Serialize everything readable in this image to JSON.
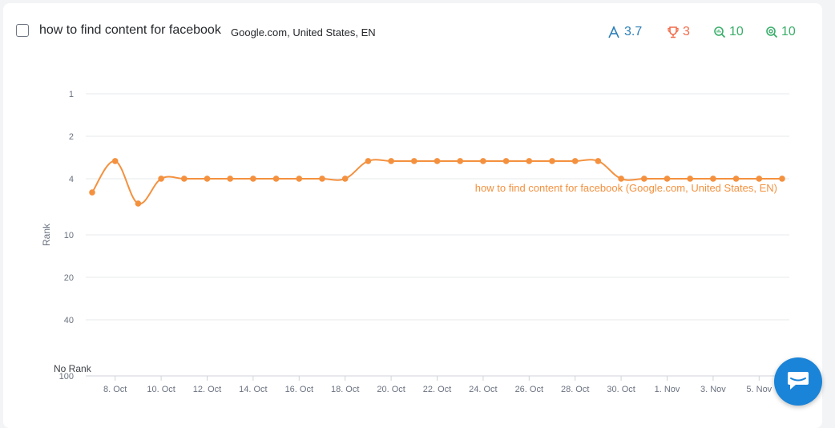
{
  "keyword": {
    "title": "how to find content for facebook",
    "engine": "Google.com, United States, EN"
  },
  "metrics": [
    {
      "icon": "average-position-icon",
      "value": "3.7",
      "color": "#2c7fb8"
    },
    {
      "icon": "trophy-icon",
      "value": "3",
      "color": "#f26b4a"
    },
    {
      "icon": "search-volume-icon",
      "value": "10",
      "color": "#3aae6a"
    },
    {
      "icon": "search-target-icon",
      "value": "10",
      "color": "#3aae6a"
    }
  ],
  "chart_data": {
    "type": "line",
    "ylabel": "Rank",
    "y_axis_scale": "log",
    "y_axis_inverted": true,
    "ylim": [
      1,
      100
    ],
    "y_ticks": [
      "1",
      "2",
      "4",
      "10",
      "20",
      "40",
      "100"
    ],
    "y_bottom_label": "No Rank",
    "x_ticks": [
      "8. Oct",
      "10. Oct",
      "12. Oct",
      "14. Oct",
      "16. Oct",
      "18. Oct",
      "20. Oct",
      "22. Oct",
      "24. Oct",
      "26. Oct",
      "28. Oct",
      "30. Oct",
      "1. Nov",
      "3. Nov",
      "5. Nov"
    ],
    "grid": true,
    "series": [
      {
        "name": "how to find content for facebook (Google.com, United States, EN)",
        "color": "#f4913f",
        "x": [
          "7. Oct",
          "8. Oct",
          "9. Oct",
          "10. Oct",
          "11. Oct",
          "12. Oct",
          "13. Oct",
          "14. Oct",
          "15. Oct",
          "16. Oct",
          "17. Oct",
          "18. Oct",
          "19. Oct",
          "20. Oct",
          "21. Oct",
          "22. Oct",
          "23. Oct",
          "24. Oct",
          "25. Oct",
          "26. Oct",
          "27. Oct",
          "28. Oct",
          "29. Oct",
          "30. Oct",
          "31. Oct",
          "1. Nov",
          "2. Nov",
          "3. Nov",
          "4. Nov",
          "5. Nov",
          "6. Nov"
        ],
        "values": [
          5,
          3,
          6,
          4,
          4,
          4,
          4,
          4,
          4,
          4,
          4,
          4,
          3,
          3,
          3,
          3,
          3,
          3,
          3,
          3,
          3,
          3,
          3,
          4,
          4,
          4,
          4,
          4,
          4,
          4,
          4
        ]
      }
    ]
  }
}
